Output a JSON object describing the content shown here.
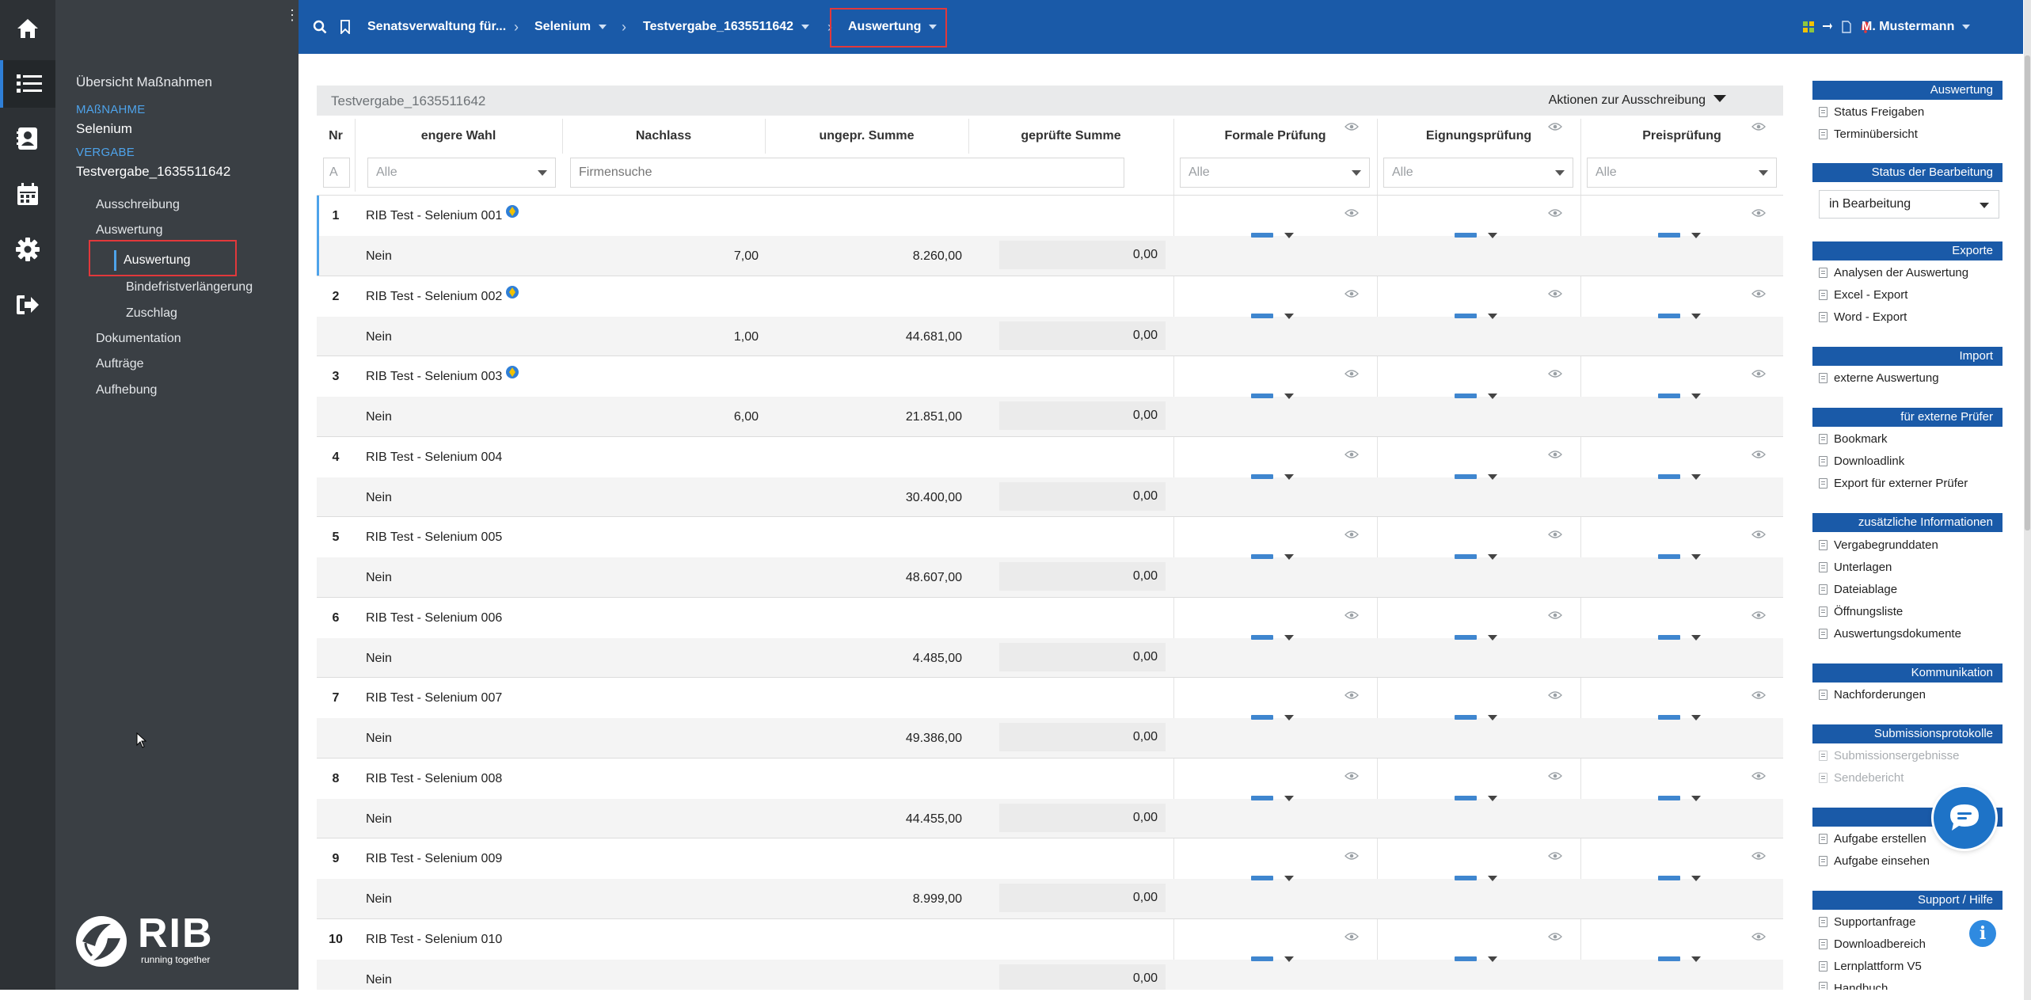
{
  "topbar": {
    "crumbs": [
      {
        "label": "Senatsverwaltung für...",
        "has_caret": false
      },
      {
        "label": "Selenium",
        "has_caret": true
      },
      {
        "label": "Testvergabe_1635511642",
        "has_caret": true
      },
      {
        "label": "Auswertung",
        "has_caret": true
      }
    ],
    "user_name": "M. Mustermann"
  },
  "sidebar": {
    "overview": "Übersicht Maßnahmen",
    "massnahme_label": "MAßNAHME",
    "massnahme_value": "Selenium",
    "vergabe_label": "VERGABE",
    "vergabe_value": "Testvergabe_1635511642",
    "nav": {
      "ausschreibung": "Ausschreibung",
      "auswertung": "Auswertung",
      "sub_auswertung": "Auswertung",
      "bindefrist": "Bindefristverlängerung",
      "zuschlag": "Zuschlag",
      "dokumentation": "Dokumentation",
      "auftraege": "Aufträge",
      "aufhebung": "Aufhebung"
    },
    "logo_word": "RIB",
    "logo_tagline": "running together"
  },
  "table": {
    "title": "Testvergabe_1635511642",
    "actions_label": "Aktionen zur Ausschreibung",
    "headers": {
      "nr": "Nr",
      "engere_wahl": "engere Wahl",
      "nachlass": "Nachlass",
      "ungepr": "ungepr. Summe",
      "gepr": "geprüfte Summe",
      "formal": "Formale Prüfung",
      "eignung": "Eignungsprüfung",
      "preis": "Preisprüfung"
    },
    "filters": {
      "nr": "A",
      "engere_wahl": "Alle",
      "firmensuche_placeholder": "Firmensuche",
      "formal": "Alle",
      "eignung": "Alle",
      "preis": "Alle"
    },
    "rows": [
      {
        "nr": "1",
        "firma": "RIB Test - Selenium 001",
        "engere_wahl": "Nein",
        "nachlass": "7,00",
        "ungepr": "8.260,00",
        "gepr": "0,00"
      },
      {
        "nr": "2",
        "firma": "RIB Test - Selenium 002",
        "engere_wahl": "Nein",
        "nachlass": "1,00",
        "ungepr": "44.681,00",
        "gepr": "0,00"
      },
      {
        "nr": "3",
        "firma": "RIB Test - Selenium 003",
        "engere_wahl": "Nein",
        "nachlass": "6,00",
        "ungepr": "21.851,00",
        "gepr": "0,00"
      },
      {
        "nr": "4",
        "firma": "RIB Test - Selenium 004",
        "engere_wahl": "Nein",
        "nachlass": "",
        "ungepr": "30.400,00",
        "gepr": "0,00"
      },
      {
        "nr": "5",
        "firma": "RIB Test - Selenium 005",
        "engere_wahl": "Nein",
        "nachlass": "",
        "ungepr": "48.607,00",
        "gepr": "0,00"
      },
      {
        "nr": "6",
        "firma": "RIB Test - Selenium 006",
        "engere_wahl": "Nein",
        "nachlass": "",
        "ungepr": "4.485,00",
        "gepr": "0,00"
      },
      {
        "nr": "7",
        "firma": "RIB Test - Selenium 007",
        "engere_wahl": "Nein",
        "nachlass": "",
        "ungepr": "49.386,00",
        "gepr": "0,00"
      },
      {
        "nr": "8",
        "firma": "RIB Test - Selenium 008",
        "engere_wahl": "Nein",
        "nachlass": "",
        "ungepr": "44.455,00",
        "gepr": "0,00"
      },
      {
        "nr": "9",
        "firma": "RIB Test - Selenium 009",
        "engere_wahl": "Nein",
        "nachlass": "",
        "ungepr": "8.999,00",
        "gepr": "0,00"
      },
      {
        "nr": "10",
        "firma": "RIB Test - Selenium 010",
        "engere_wahl": "Nein",
        "nachlass": "",
        "ungepr": "",
        "gepr": "0,00"
      }
    ]
  },
  "right_panel": {
    "auswertung": {
      "title": "Auswertung",
      "items": [
        "Status Freigaben",
        "Terminübersicht"
      ]
    },
    "status": {
      "title": "Status der Bearbeitung",
      "value": "in Bearbeitung"
    },
    "exporte": {
      "title": "Exporte",
      "items": [
        "Analysen der Auswertung",
        "Excel - Export",
        "Word - Export"
      ]
    },
    "import": {
      "title": "Import",
      "items": [
        "externe Auswertung"
      ]
    },
    "externe": {
      "title": "für externe Prüfer",
      "items": [
        "Bookmark",
        "Downloadlink",
        "Export für externer Prüfer"
      ]
    },
    "zusatz": {
      "title": "zusätzliche Informationen",
      "items": [
        "Vergabegrunddaten",
        "Unterlagen",
        "Dateiablage",
        "Öffnungsliste",
        "Auswertungsdokumente"
      ]
    },
    "kommunikation": {
      "title": "Kommunikation",
      "items": [
        "Nachforderungen"
      ]
    },
    "submission": {
      "title": "Submissionsprotokolle",
      "items": [
        "Submissionsergebnisse",
        "Sendebericht"
      ]
    },
    "aufgaben": {
      "title": "",
      "items": [
        "Aufgabe erstellen",
        "Aufgabe einsehen"
      ]
    },
    "support": {
      "title": "Support / Hilfe",
      "items": [
        "Supportanfrage",
        "Downloadbereich",
        "Lernplattform V5",
        "Handbuch"
      ]
    }
  },
  "colors": {
    "topbar": "#1a5aa8",
    "sidebar": "#3a3f44",
    "rail": "#2d3135",
    "accent": "#4ea3ea",
    "highlight_box": "#e2383b"
  }
}
